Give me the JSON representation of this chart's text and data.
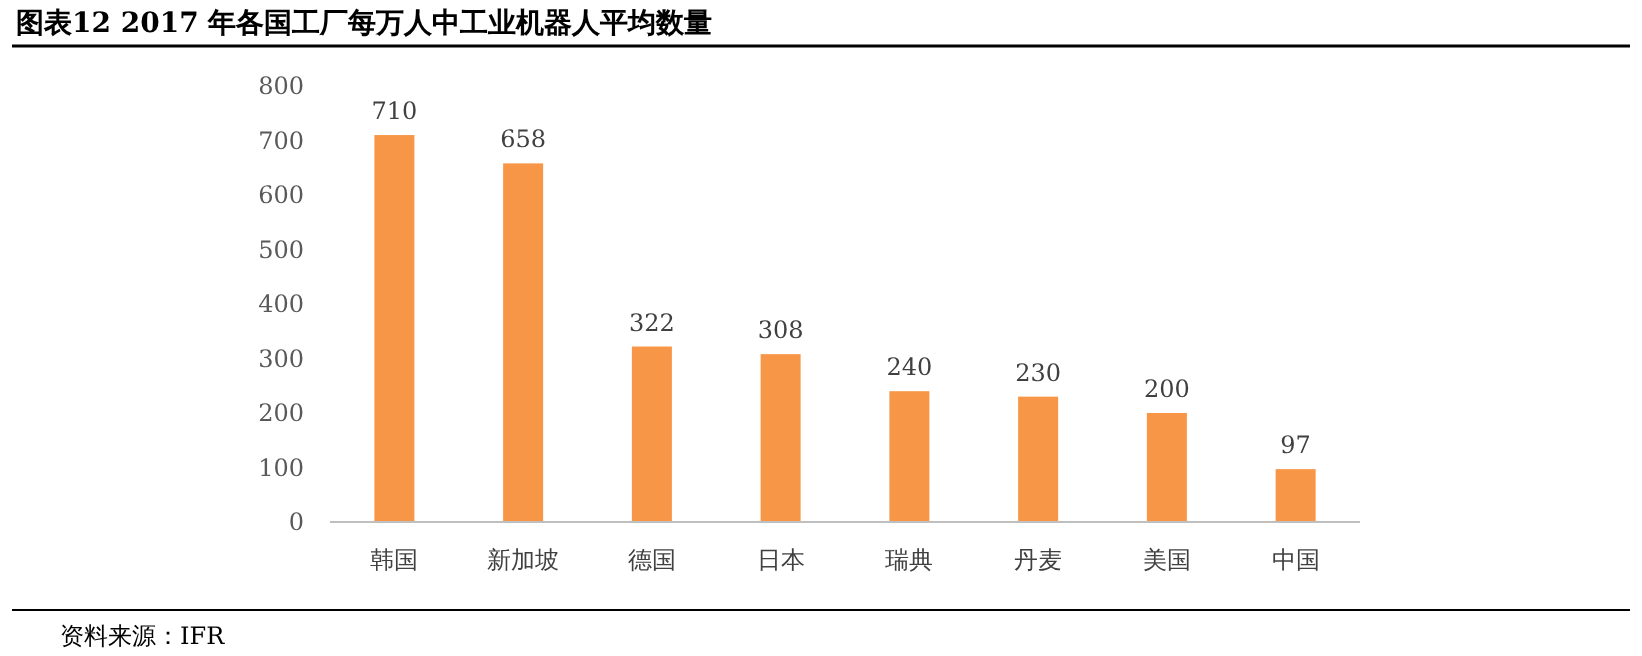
{
  "chart_data": {
    "type": "bar",
    "title": "图表12 2017 年各国工厂每万人中工业机器人平均数量",
    "categories": [
      "韩国",
      "新加坡",
      "德国",
      "日本",
      "瑞典",
      "丹麦",
      "美国",
      "中国"
    ],
    "values": [
      710,
      658,
      322,
      308,
      240,
      230,
      200,
      97
    ],
    "color": "#f79646",
    "ylim": [
      0,
      800
    ],
    "yticks": [
      0,
      100,
      200,
      300,
      400,
      500,
      600,
      700,
      800
    ],
    "data_labels": true,
    "annotations": [
      "资料来源：IFR"
    ]
  }
}
